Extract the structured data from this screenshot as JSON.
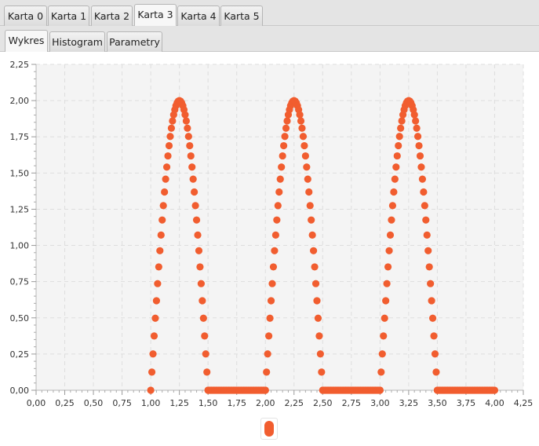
{
  "top_tabs": [
    "Karta 0",
    "Karta 1",
    "Karta 2",
    "Karta 3",
    "Karta 4",
    "Karta 5"
  ],
  "top_tabs_selected": "Karta 3",
  "sub_tabs": [
    "Wykres",
    "Histogram",
    "Parametry"
  ],
  "sub_tabs_selected": "Wykres",
  "colors": {
    "series": "#f15d2f",
    "plot_background": "#f4f4f4",
    "grid": "#dedede"
  },
  "chart_data": {
    "type": "scatter",
    "xlim": [
      0,
      4.25
    ],
    "ylim": [
      0,
      2.25
    ],
    "x_ticks": [
      "0,00",
      "0,25",
      "0,50",
      "0,75",
      "1,00",
      "1,25",
      "1,50",
      "1,75",
      "2,00",
      "2,25",
      "2,50",
      "2,75",
      "3,00",
      "3,25",
      "3,50",
      "3,75",
      "4,00",
      "4,25"
    ],
    "y_ticks": [
      "0,00",
      "0,25",
      "0,50",
      "0,75",
      "1,00",
      "1,25",
      "1,50",
      "1,75",
      "2,00",
      "2,25"
    ],
    "grid": true,
    "legend": "bottom-center",
    "x_step": 0.01,
    "segments": [
      {
        "kind": "arch",
        "x_start": 1.0,
        "x_end": 1.5,
        "peak": 2.0
      },
      {
        "kind": "zero",
        "x_start": 1.5,
        "x_end": 2.0
      },
      {
        "kind": "arch",
        "x_start": 2.0,
        "x_end": 2.5,
        "peak": 2.0
      },
      {
        "kind": "zero",
        "x_start": 2.5,
        "x_end": 3.0
      },
      {
        "kind": "arch",
        "x_start": 3.0,
        "x_end": 3.5,
        "peak": 2.0
      },
      {
        "kind": "zero",
        "x_start": 3.5,
        "x_end": 4.0
      }
    ]
  }
}
